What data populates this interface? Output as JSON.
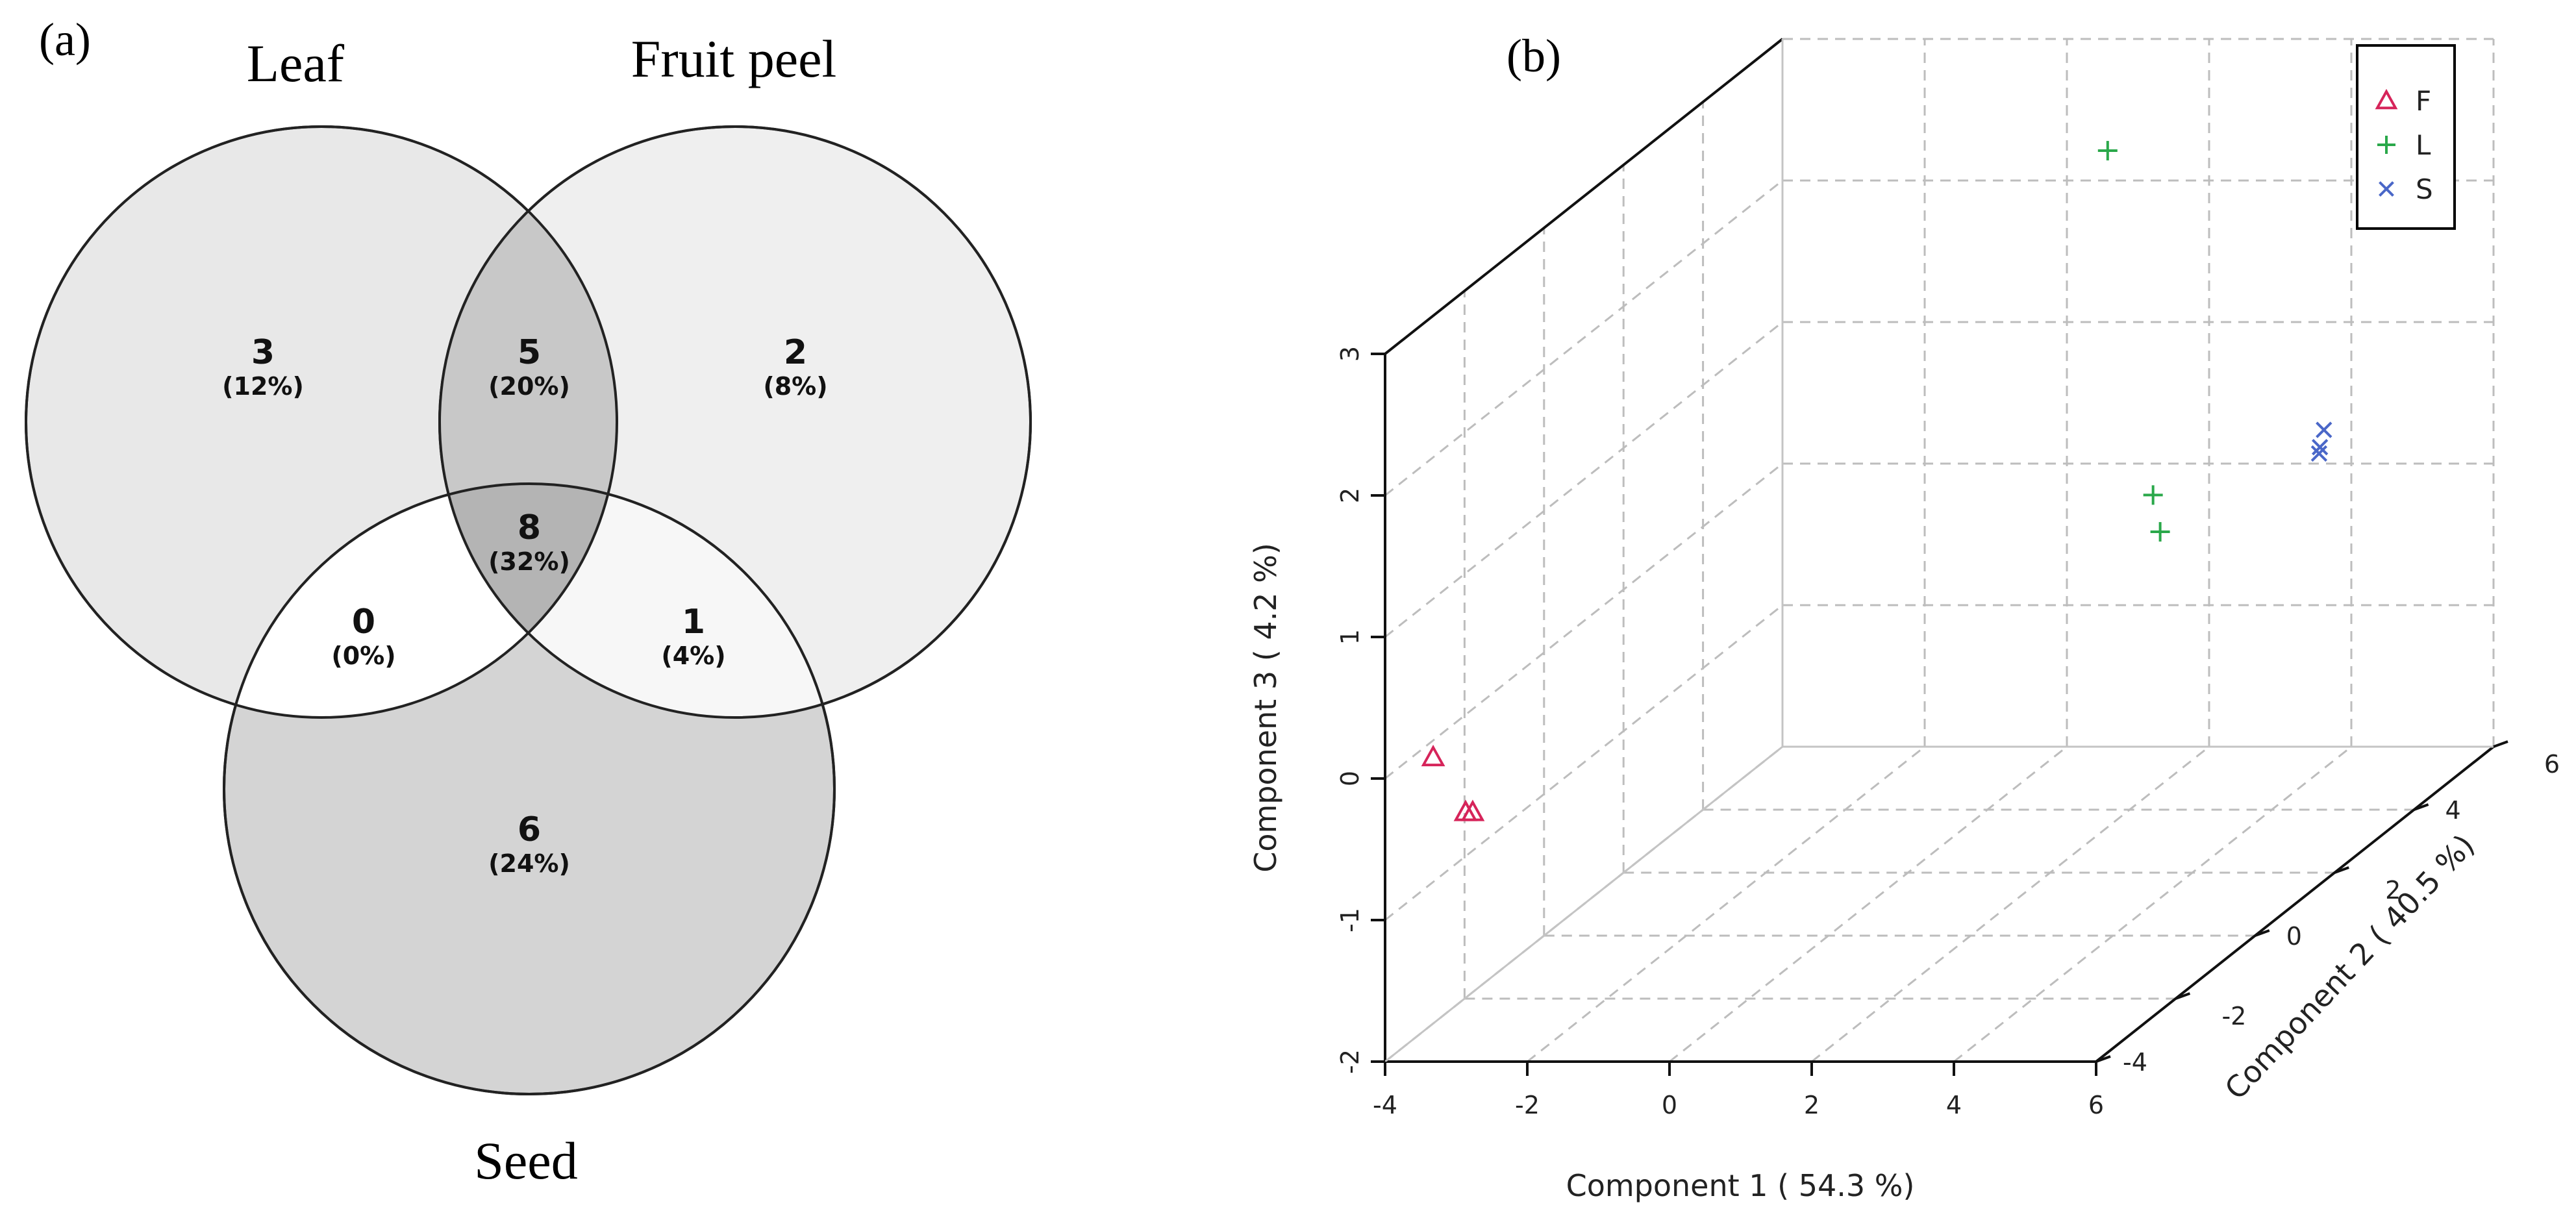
{
  "panel_a": {
    "label": "(a)",
    "chart_data": {
      "type": "venn",
      "sets": [
        "Leaf",
        "Fruit peel",
        "Seed"
      ],
      "regions": [
        {
          "sets": [
            "Leaf"
          ],
          "count": "3",
          "percent": "(12%)"
        },
        {
          "sets": [
            "Leaf",
            "Fruit peel"
          ],
          "count": "5",
          "percent": "(20%)"
        },
        {
          "sets": [
            "Fruit peel"
          ],
          "count": "2",
          "percent": "(8%)"
        },
        {
          "sets": [
            "Leaf",
            "Fruit peel",
            "Seed"
          ],
          "count": "8",
          "percent": "(32%)"
        },
        {
          "sets": [
            "Leaf",
            "Seed"
          ],
          "count": "0",
          "percent": "(0%)"
        },
        {
          "sets": [
            "Fruit peel",
            "Seed"
          ],
          "count": "1",
          "percent": "(4%)"
        },
        {
          "sets": [
            "Seed"
          ],
          "count": "6",
          "percent": "(24%)"
        }
      ]
    }
  },
  "panel_b": {
    "label": "(b)",
    "chart_data": {
      "type": "scatter",
      "projection": "3d",
      "xlabel": "Component 1 ( 54.3 %)",
      "ylabel": "Component 2 ( 40.5 %)",
      "zlabel": "Component 3 ( 4.2 %)",
      "xlim": [
        -4,
        6
      ],
      "ylim": [
        -4,
        6
      ],
      "zlim": [
        -2,
        3
      ],
      "xticks": [
        "-4",
        "-2",
        "0",
        "2",
        "4",
        "6"
      ],
      "yticks": [
        "-4",
        "-2",
        "0",
        "2",
        "4",
        "6"
      ],
      "zticks": [
        "-2",
        "-1",
        "0",
        "1",
        "2",
        "3"
      ],
      "grid": true,
      "legend_position": "top-right",
      "series": [
        {
          "name": "F",
          "marker": "triangle",
          "color": "#d6245a",
          "points": [
            [
              -3.1,
              -4.4,
              0.24
            ],
            [
              -2.7,
              -4.3,
              -0.17
            ],
            [
              -2.6,
              -4.3,
              -0.17
            ]
          ]
        },
        {
          "name": "L",
          "marker": "plus",
          "color": "#2aa84a",
          "points": [
            [
              1.3,
              4.7,
              2.5
            ],
            [
              3.0,
              2.8,
              0.49
            ],
            [
              3.1,
              2.8,
              0.23
            ]
          ]
        },
        {
          "name": "S",
          "marker": "x",
          "color": "#4a67c8",
          "points": [
            [
              5.0,
              3.4,
              0.65
            ],
            [
              4.9,
              3.6,
              0.65
            ],
            [
              4.9,
              3.7,
              0.75
            ]
          ]
        }
      ]
    }
  }
}
